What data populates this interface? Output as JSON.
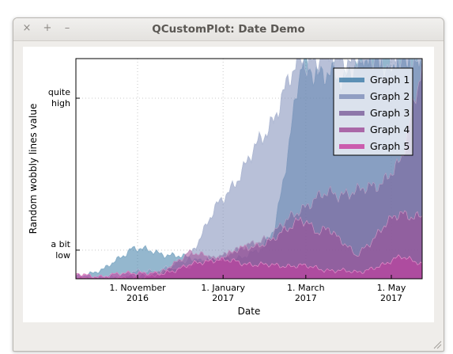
{
  "window": {
    "title": "QCustomPlot: Date Demo",
    "buttons": {
      "close": "×",
      "maximize": "+",
      "minimize": "–"
    }
  },
  "chart_data": {
    "type": "area",
    "xlabel": "Date",
    "ylabel": "Random wobbly lines value",
    "x_range": [
      "2016-09-18",
      "2017-05-23"
    ],
    "x_ticks": [
      {
        "date": "2016-11-01",
        "line1": "1. November",
        "line2": "2016"
      },
      {
        "date": "2017-01-01",
        "line1": "1. January",
        "line2": "2017"
      },
      {
        "date": "2017-03-01",
        "line1": "1. March",
        "line2": "2017"
      },
      {
        "date": "2017-05-01",
        "line1": "1. May",
        "line2": "2017"
      }
    ],
    "ylim": [
      0,
      1
    ],
    "y_ticks": [
      {
        "value": 0.13,
        "line1": "a bit",
        "line2": "low"
      },
      {
        "value": 0.82,
        "line1": "quite",
        "line2": "high"
      }
    ],
    "grid": true,
    "legend_position": "top-right",
    "series": [
      {
        "name": "Graph 1",
        "color": "#3c7ca6",
        "points": [
          [
            "2016-09-18",
            0.01
          ],
          [
            "2016-10-08",
            0.04
          ],
          [
            "2016-10-28",
            0.14
          ],
          [
            "2016-11-14",
            0.12
          ],
          [
            "2016-12-01",
            0.1
          ],
          [
            "2016-12-20",
            0.08
          ],
          [
            "2017-01-09",
            0.09
          ],
          [
            "2017-01-29",
            0.13
          ],
          [
            "2017-02-07",
            0.24
          ],
          [
            "2017-02-17",
            0.6
          ],
          [
            "2017-02-26",
            0.97
          ],
          [
            "2017-03-07",
            0.95
          ],
          [
            "2017-03-17",
            0.93
          ],
          [
            "2017-03-27",
            0.88
          ],
          [
            "2017-04-06",
            1.0
          ],
          [
            "2017-04-16",
            1.0
          ],
          [
            "2017-04-26",
            1.0
          ],
          [
            "2017-05-06",
            1.0
          ],
          [
            "2017-05-23",
            1.0
          ]
        ]
      },
      {
        "name": "Graph 2",
        "color": "#7d8db8",
        "points": [
          [
            "2016-09-18",
            0.0
          ],
          [
            "2016-10-08",
            0.01
          ],
          [
            "2016-10-28",
            0.03
          ],
          [
            "2016-11-17",
            0.04
          ],
          [
            "2016-12-07",
            0.09
          ],
          [
            "2016-12-27",
            0.32
          ],
          [
            "2017-01-16",
            0.5
          ],
          [
            "2017-02-05",
            0.72
          ],
          [
            "2017-02-25",
            1.0
          ],
          [
            "2017-03-17",
            1.0
          ],
          [
            "2017-04-06",
            1.0
          ],
          [
            "2017-04-26",
            1.0
          ],
          [
            "2017-05-23",
            1.0
          ]
        ]
      },
      {
        "name": "Graph 3",
        "color": "#7a5c99",
        "points": [
          [
            "2016-09-18",
            0.0
          ],
          [
            "2016-10-08",
            0.0
          ],
          [
            "2016-10-28",
            0.01
          ],
          [
            "2016-11-17",
            0.03
          ],
          [
            "2016-12-07",
            0.06
          ],
          [
            "2016-12-27",
            0.1
          ],
          [
            "2017-01-16",
            0.14
          ],
          [
            "2017-02-05",
            0.2
          ],
          [
            "2017-02-25",
            0.32
          ],
          [
            "2017-03-17",
            0.39
          ],
          [
            "2017-04-06",
            0.39
          ],
          [
            "2017-04-26",
            0.45
          ],
          [
            "2017-05-08",
            0.52
          ],
          [
            "2017-05-23",
            1.0
          ]
        ]
      },
      {
        "name": "Graph 4",
        "color": "#9e4a96",
        "points": [
          [
            "2016-09-18",
            0.0
          ],
          [
            "2016-10-08",
            0.0
          ],
          [
            "2016-10-28",
            0.0
          ],
          [
            "2016-11-17",
            0.02
          ],
          [
            "2016-12-07",
            0.12
          ],
          [
            "2016-12-27",
            0.09
          ],
          [
            "2017-01-16",
            0.14
          ],
          [
            "2017-02-05",
            0.17
          ],
          [
            "2017-02-25",
            0.28
          ],
          [
            "2017-03-10",
            0.2
          ],
          [
            "2017-03-17",
            0.24
          ],
          [
            "2017-04-06",
            0.1
          ],
          [
            "2017-04-26",
            0.24
          ],
          [
            "2017-05-08",
            0.3
          ],
          [
            "2017-05-23",
            0.28
          ]
        ]
      },
      {
        "name": "Graph 5",
        "color": "#c73c9e",
        "points": [
          [
            "2016-09-18",
            0.02
          ],
          [
            "2016-10-08",
            0.01
          ],
          [
            "2016-10-28",
            0.03
          ],
          [
            "2016-11-17",
            0.02
          ],
          [
            "2016-12-07",
            0.06
          ],
          [
            "2016-12-27",
            0.09
          ],
          [
            "2017-01-16",
            0.07
          ],
          [
            "2017-02-05",
            0.06
          ],
          [
            "2017-02-25",
            0.06
          ],
          [
            "2017-03-17",
            0.04
          ],
          [
            "2017-04-06",
            0.03
          ],
          [
            "2017-04-26",
            0.06
          ],
          [
            "2017-05-08",
            0.11
          ],
          [
            "2017-05-23",
            0.06
          ]
        ]
      }
    ]
  }
}
